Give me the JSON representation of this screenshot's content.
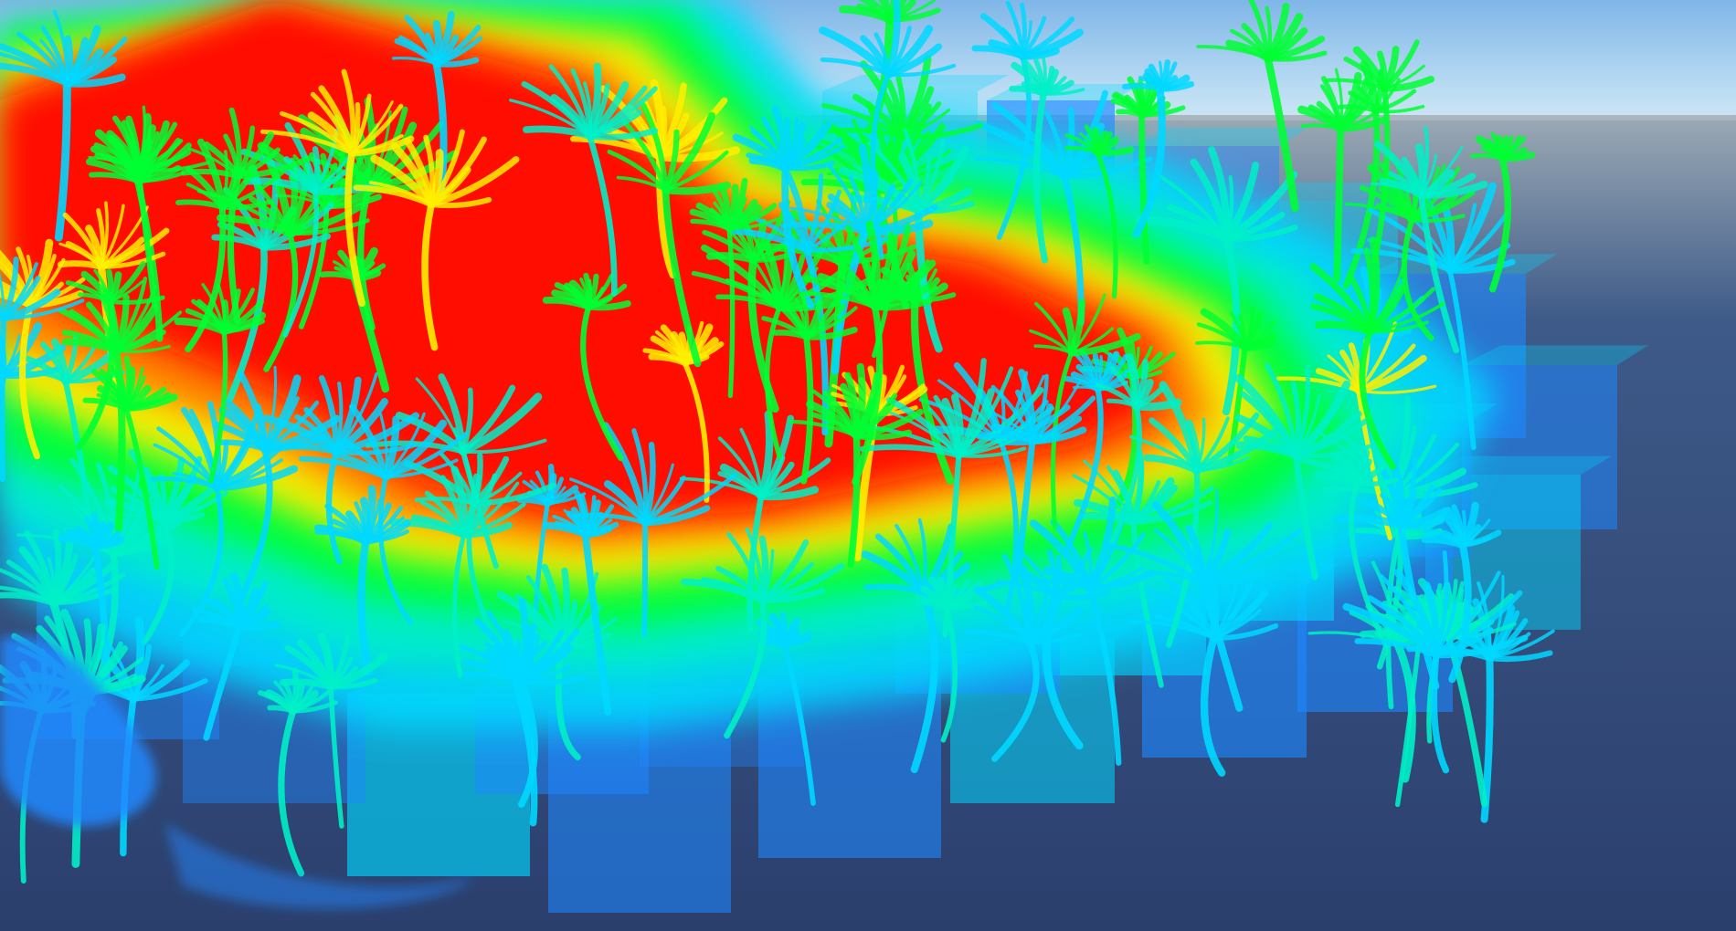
{
  "scene": {
    "view_mode": "overdraw-heatmap",
    "heat_palette": {
      "low": "#1e88ff",
      "low_mid": "#00d8ff",
      "mid": "#00f0c8",
      "mid_high": "#00ff33",
      "high": "#ffee00",
      "very_high": "#ff7a00",
      "max": "#ff0c00"
    },
    "sky_colors": [
      "#7fb6e8",
      "#b9dbf3",
      "#cfe6f4"
    ],
    "ground_colors": [
      "#9aa9b4",
      "#3e5a88",
      "#2b3f6d"
    ],
    "foliage_icon": "plant-foliage-icon"
  }
}
